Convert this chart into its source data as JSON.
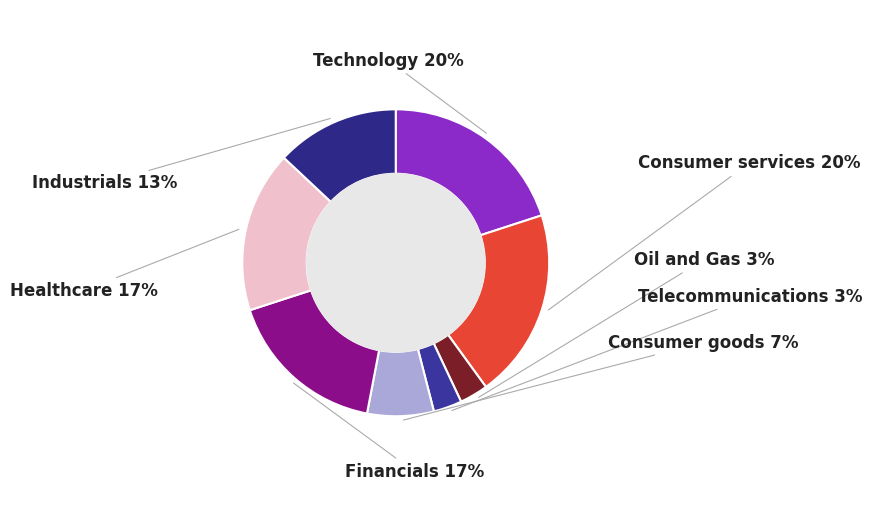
{
  "segments": [
    {
      "label": "Technology 20%",
      "value": 20,
      "color": "#8B2AC8"
    },
    {
      "label": "Consumer services 20%",
      "value": 20,
      "color": "#E84535"
    },
    {
      "label": "Oil and Gas 3%",
      "value": 3,
      "color": "#7B1E28"
    },
    {
      "label": "Telecommunications 3%",
      "value": 3,
      "color": "#3B35A0"
    },
    {
      "label": "Consumer goods 7%",
      "value": 7,
      "color": "#A9A8D8"
    },
    {
      "label": "Financials 17%",
      "value": 17,
      "color": "#8B0D8A"
    },
    {
      "label": "Healthcare 17%",
      "value": 17,
      "color": "#F0C0CC"
    },
    {
      "label": "Industrials 13%",
      "value": 13,
      "color": "#2E2888"
    }
  ],
  "background_color": "#ffffff",
  "inner_circle_color": "#e8e8e8",
  "donut_width": 0.42,
  "label_fontsize": 12,
  "label_color": "#222222"
}
